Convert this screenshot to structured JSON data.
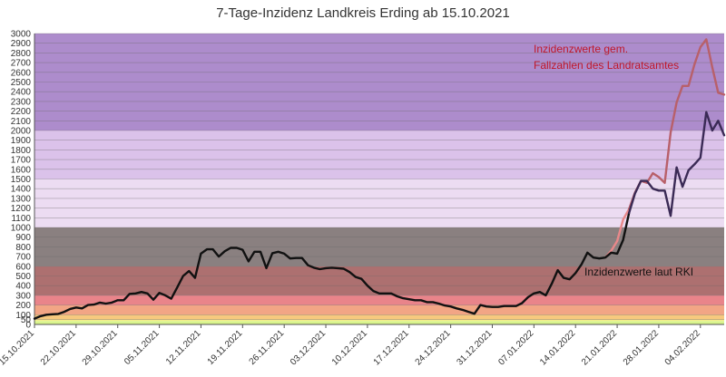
{
  "chart_data": {
    "type": "line",
    "title": "7-Tage-Inzidenz Landkreis Erding ab 15.10.2021",
    "ylim": [
      0,
      3000
    ],
    "yticks": [
      0,
      50,
      100,
      200,
      300,
      400,
      500,
      600,
      700,
      800,
      900,
      1000,
      1100,
      1200,
      1300,
      1400,
      1500,
      1600,
      1700,
      1800,
      1900,
      2000,
      2100,
      2200,
      2300,
      2400,
      2500,
      2600,
      2700,
      2800,
      2900,
      3000
    ],
    "ytick_labels": [
      "0",
      "50",
      "100",
      "200",
      "300",
      "400",
      "500",
      "600",
      "700",
      "800",
      "900",
      "1000",
      "1100",
      "1200",
      "1300",
      "1400",
      "1500",
      "1600",
      "1700",
      "1800",
      "1900",
      "2000",
      "2100",
      "2200",
      "2300",
      "2400",
      "2500",
      "2600",
      "2700",
      "2800",
      "2900",
      "3000"
    ],
    "xtick_labels": [
      "15.10.2021",
      "22.10.2021",
      "29.10.2021",
      "05.11.2021",
      "12.11.2021",
      "19.11.2021",
      "26.11.2021",
      "03.12.2021",
      "10.12.2021",
      "17.12.2021",
      "24.12.2021",
      "31.12.2021",
      "07.01.2022",
      "14.01.2022",
      "21.01.2022",
      "28.01.2022",
      "04.02.2022"
    ],
    "x_days_total": 116,
    "grid": true,
    "bands": [
      {
        "from": 0,
        "to": 35,
        "color": "#d8f48c"
      },
      {
        "from": 35,
        "to": 50,
        "color": "#f2ee8a"
      },
      {
        "from": 50,
        "to": 100,
        "color": "#f7c97e"
      },
      {
        "from": 100,
        "to": 200,
        "color": "#f2a585"
      },
      {
        "from": 200,
        "to": 300,
        "color": "#e9848a"
      },
      {
        "from": 300,
        "to": 600,
        "color": "#ad7070"
      },
      {
        "from": 600,
        "to": 1000,
        "color": "#8a8080"
      },
      {
        "from": 1000,
        "to": 1500,
        "color": "#ecdcf2"
      },
      {
        "from": 1500,
        "to": 2000,
        "color": "#dbc2ea"
      },
      {
        "from": 2000,
        "to": 3000,
        "color": "#ad8ccc"
      }
    ],
    "annotations": [
      {
        "lines": [
          "Inzidenzwerte gem.",
          "Fallzahlen des Landratsamtes"
        ],
        "color": "#c0182a"
      },
      {
        "lines": [
          "Inzidenzwerte laut RKI"
        ],
        "color": "#111111"
      }
    ],
    "series": [
      {
        "name": "Inzidenzwerte laut RKI",
        "color": "#111111",
        "color_late": "#3a2a55",
        "x": [
          0,
          1,
          2,
          3,
          4,
          5,
          6,
          7,
          8,
          9,
          10,
          11,
          12,
          13,
          14,
          15,
          16,
          17,
          18,
          19,
          20,
          21,
          22,
          23,
          24,
          25,
          26,
          27,
          28,
          29,
          30,
          31,
          32,
          33,
          34,
          35,
          36,
          37,
          38,
          39,
          40,
          41,
          42,
          43,
          44,
          45,
          46,
          47,
          48,
          49,
          50,
          51,
          52,
          53,
          54,
          55,
          56,
          57,
          58,
          59,
          60,
          61,
          62,
          63,
          64,
          65,
          66,
          67,
          68,
          69,
          70,
          71,
          72,
          73,
          74,
          75,
          76,
          77,
          78,
          79,
          80,
          81,
          82,
          83,
          84,
          85,
          86,
          87,
          88,
          89,
          90,
          91,
          92,
          93,
          94,
          95,
          96,
          97,
          98,
          99,
          100,
          101,
          102,
          103,
          104,
          105,
          106,
          107,
          108,
          109,
          110,
          111,
          112,
          113,
          114,
          115,
          116
        ],
        "y": [
          60,
          85,
          100,
          105,
          108,
          130,
          160,
          175,
          165,
          200,
          205,
          225,
          215,
          225,
          250,
          250,
          315,
          320,
          335,
          320,
          255,
          325,
          300,
          265,
          380,
          500,
          550,
          480,
          730,
          775,
          775,
          700,
          755,
          790,
          790,
          770,
          650,
          750,
          750,
          580,
          735,
          750,
          730,
          680,
          685,
          685,
          610,
          585,
          570,
          580,
          585,
          580,
          575,
          540,
          490,
          470,
          400,
          345,
          320,
          320,
          320,
          290,
          270,
          260,
          250,
          250,
          230,
          230,
          215,
          195,
          185,
          165,
          150,
          130,
          110,
          200,
          185,
          180,
          180,
          190,
          190,
          190,
          220,
          280,
          320,
          335,
          300,
          420,
          560,
          480,
          465,
          530,
          620,
          740,
          690,
          680,
          690,
          740,
          730,
          870,
          1150,
          1350,
          1480,
          1480,
          1400,
          1380,
          1380,
          1120,
          1620,
          1420,
          1590,
          1650,
          1720,
          2190,
          2000,
          2100,
          1950
        ]
      },
      {
        "name": "Inzidenzwerte gem. Fallzahlen des Landratsamtes",
        "color": "#e8888a",
        "color_late": "#b8606a",
        "x": [
          96,
          97,
          98,
          99,
          100,
          101,
          102,
          103,
          104,
          105,
          106,
          107,
          108,
          109,
          110,
          111,
          112,
          113,
          114,
          115,
          116
        ],
        "y": [
          690,
          760,
          860,
          1080,
          1190,
          1360,
          1480,
          1460,
          1560,
          1520,
          1460,
          1980,
          2290,
          2460,
          2460,
          2680,
          2860,
          2940,
          2650,
          2390,
          2370
        ]
      }
    ]
  }
}
